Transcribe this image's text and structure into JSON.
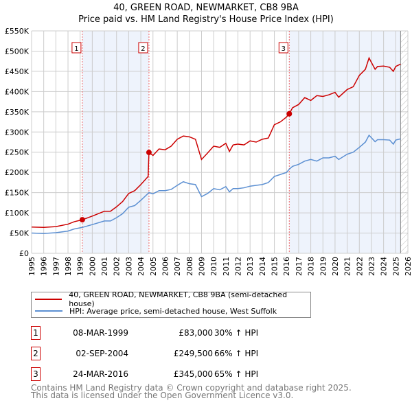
{
  "chart_data": {
    "type": "line",
    "title": "40, GREEN ROAD, NEWMARKET, CB8 9BA",
    "subtitle": "Price paid vs. HM Land Registry's House Price Index (HPI)",
    "xlim": [
      1995,
      2026
    ],
    "ylim": [
      0,
      550000
    ],
    "yticks": [
      "£0",
      "£50K",
      "£100K",
      "£150K",
      "£200K",
      "£250K",
      "£300K",
      "£350K",
      "£400K",
      "£450K",
      "£500K",
      "£550K"
    ],
    "xticks": [
      "1995",
      "1996",
      "1997",
      "1998",
      "1999",
      "2000",
      "2001",
      "2002",
      "2003",
      "2004",
      "2005",
      "2006",
      "2007",
      "2008",
      "2009",
      "2010",
      "2011",
      "2012",
      "2013",
      "2014",
      "2015",
      "2016",
      "2017",
      "2018",
      "2019",
      "2020",
      "2021",
      "2022",
      "2023",
      "2024",
      "2025",
      "2026"
    ],
    "grid": true,
    "shaded_ranges": [
      [
        1999.18,
        2004.67
      ],
      [
        2016.23,
        2025.4
      ]
    ],
    "hatched_from": 2025.4,
    "series": [
      {
        "name": "40, GREEN ROAD, NEWMARKET, CB8 9BA (semi-detached house)",
        "color": "#cc0000",
        "x": [
          1995,
          1996,
          1997,
          1998,
          1998.5,
          1999.18,
          2000,
          2001,
          2001.5,
          2002,
          2002.5,
          2003,
          2003.5,
          2004,
          2004.6,
          2004.67,
          2005,
          2005.5,
          2006,
          2006.5,
          2007,
          2007.5,
          2008,
          2008.5,
          2009,
          2009.5,
          2010,
          2010.5,
          2011,
          2011.3,
          2011.6,
          2012,
          2012.5,
          2013,
          2013.5,
          2014,
          2014.5,
          2015,
          2015.5,
          2016,
          2016.23,
          2016.5,
          2017,
          2017.5,
          2018,
          2018.5,
          2019,
          2019.5,
          2020,
          2020.3,
          2021,
          2021.5,
          2022,
          2022.5,
          2022.8,
          2023.3,
          2023.5,
          2024,
          2024.5,
          2024.8,
          2025,
          2025.4
        ],
        "y": [
          65000,
          64000,
          66000,
          72000,
          78000,
          83000,
          92000,
          104000,
          104000,
          115000,
          128000,
          148000,
          155000,
          170000,
          190000,
          249500,
          242000,
          258000,
          256000,
          265000,
          282000,
          290000,
          288000,
          282000,
          232000,
          248000,
          265000,
          262000,
          272000,
          252000,
          268000,
          270000,
          268000,
          278000,
          275000,
          282000,
          285000,
          318000,
          325000,
          337000,
          345000,
          360000,
          368000,
          385000,
          378000,
          390000,
          388000,
          392000,
          398000,
          386000,
          405000,
          412000,
          440000,
          455000,
          483000,
          455000,
          462000,
          463000,
          460000,
          450000,
          462000,
          468000
        ]
      },
      {
        "name": "HPI: Average price, semi-detached house, West Suffolk",
        "color": "#5b8fd2",
        "x": [
          1995,
          1996,
          1997,
          1998,
          1998.5,
          1999.18,
          2000,
          2001,
          2001.5,
          2002,
          2002.5,
          2003,
          2003.5,
          2004,
          2004.67,
          2005,
          2005.5,
          2006,
          2006.5,
          2007,
          2007.5,
          2008,
          2008.5,
          2009,
          2009.5,
          2010,
          2010.5,
          2011,
          2011.3,
          2011.6,
          2012,
          2012.5,
          2013,
          2013.5,
          2014,
          2014.5,
          2015,
          2015.5,
          2016,
          2016.23,
          2016.5,
          2017,
          2017.5,
          2018,
          2018.5,
          2019,
          2019.5,
          2020,
          2020.3,
          2021,
          2021.5,
          2022,
          2022.5,
          2022.8,
          2023.3,
          2023.5,
          2024,
          2024.5,
          2024.8,
          2025,
          2025.4
        ],
        "y": [
          50000,
          49000,
          51000,
          55000,
          60000,
          64000,
          71000,
          80000,
          80000,
          88000,
          98000,
          114000,
          118000,
          131000,
          150000,
          147000,
          155000,
          155000,
          158000,
          168000,
          177000,
          172000,
          170000,
          140000,
          148000,
          160000,
          157000,
          165000,
          152000,
          160000,
          160000,
          162000,
          166000,
          168000,
          170000,
          175000,
          190000,
          195000,
          200000,
          208000,
          215000,
          220000,
          228000,
          232000,
          228000,
          236000,
          236000,
          240000,
          232000,
          245000,
          250000,
          262000,
          275000,
          292000,
          276000,
          281000,
          281000,
          280000,
          270000,
          280000,
          283000
        ]
      }
    ],
    "sales": [
      {
        "label": "1",
        "date": "08-MAR-1999",
        "price": "£83,000",
        "hpi": "30% ↑ HPI",
        "x": 1999.18,
        "y": 83000
      },
      {
        "label": "2",
        "date": "02-SEP-2004",
        "price": "£249,500",
        "hpi": "66% ↑ HPI",
        "x": 2004.67,
        "y": 249500
      },
      {
        "label": "3",
        "date": "24-MAR-2016",
        "price": "£345,000",
        "hpi": "65% ↑ HPI",
        "x": 2016.23,
        "y": 345000
      }
    ]
  },
  "footer": {
    "line1": "Contains HM Land Registry data © Crown copyright and database right 2025.",
    "line2": "This data is licensed under the Open Government Licence v3.0."
  }
}
